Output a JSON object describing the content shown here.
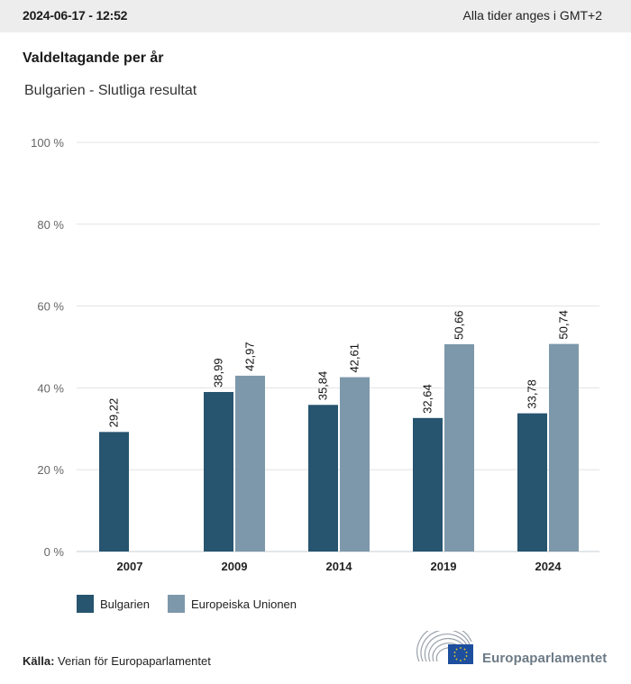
{
  "header": {
    "datetime": "2024-06-17 - 12:52",
    "timezone_note": "Alla tider anges i GMT+2"
  },
  "title": "Valdeltagande per år",
  "subtitle": "Bulgarien - Slutliga resultat",
  "colors": {
    "bulgarien": "#27546f",
    "eu": "#7d98ab",
    "grid": "#e3e3e3",
    "axis": "#c9cdd0"
  },
  "chart_data": {
    "type": "bar",
    "title": "Valdeltagande per år",
    "subtitle": "Bulgarien - Slutliga resultat",
    "xlabel": "",
    "ylabel": "",
    "ylim": [
      0,
      100
    ],
    "yticks": [
      0,
      20,
      40,
      60,
      80,
      100
    ],
    "ytick_labels": [
      "0 %",
      "20 %",
      "40 %",
      "60 %",
      "80 %",
      "100 %"
    ],
    "grid": true,
    "legend_position": "bottom-left",
    "categories": [
      "2007",
      "2009",
      "2014",
      "2019",
      "2024"
    ],
    "series": [
      {
        "name": "Bulgarien",
        "values": [
          29.22,
          38.99,
          35.84,
          32.64,
          33.78
        ],
        "labels": [
          "29,22",
          "38,99",
          "35,84",
          "32,64",
          "33,78"
        ]
      },
      {
        "name": "Europeiska Unionen",
        "values": [
          null,
          42.97,
          42.61,
          50.66,
          50.74
        ],
        "labels": [
          null,
          "42,97",
          "42,61",
          "50,66",
          "50,74"
        ]
      }
    ]
  },
  "legend": {
    "items": [
      "Bulgarien",
      "Europeiska Unionen"
    ]
  },
  "footer": {
    "source_label": "Källa:",
    "source_text": "Verian för Europaparlamentet",
    "logo_text": "Europaparlamentet"
  }
}
